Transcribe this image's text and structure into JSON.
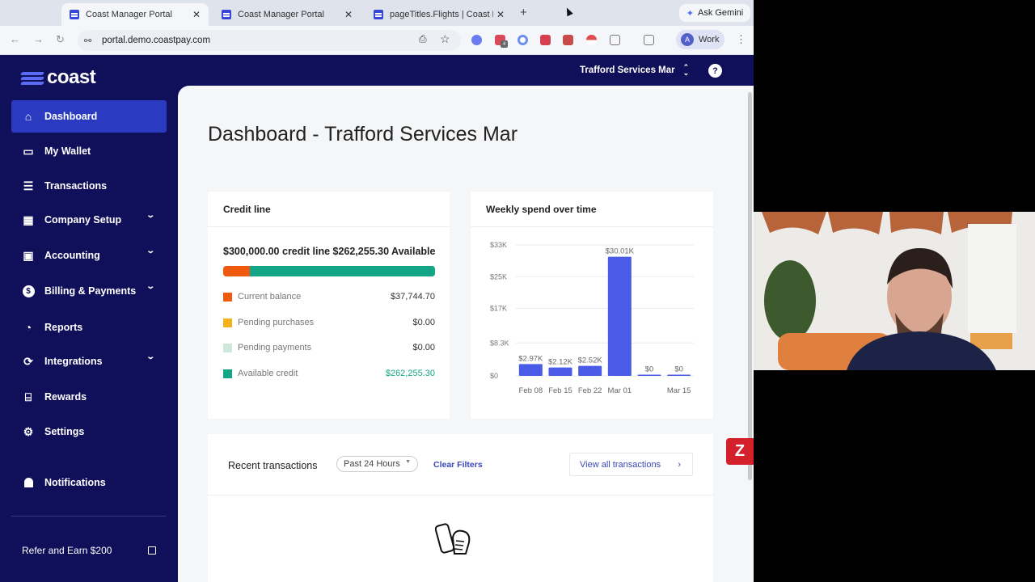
{
  "browser": {
    "tabs": [
      {
        "title": "Coast Manager Portal",
        "active": true
      },
      {
        "title": "Coast Manager Portal",
        "active": false
      },
      {
        "title": "pageTitles.Flights | Coast Rev",
        "active": false
      }
    ],
    "new_tab": "+",
    "ask_gemini": "Ask Gemini",
    "url": "portal.demo.coastpay.com",
    "profile": {
      "initial": "A",
      "label": "Work"
    },
    "extension_badge": "4"
  },
  "sidebar": {
    "logo_text": "coast",
    "items": [
      {
        "label": "Dashboard",
        "icon": "home-icon",
        "active": true,
        "expandable": false
      },
      {
        "label": "My Wallet",
        "icon": "wallet-card-icon",
        "active": false,
        "expandable": false
      },
      {
        "label": "Transactions",
        "icon": "list-icon",
        "active": false,
        "expandable": false
      },
      {
        "label": "Company Setup",
        "icon": "building-icon",
        "active": false,
        "expandable": true
      },
      {
        "label": "Accounting",
        "icon": "calculator-icon",
        "active": false,
        "expandable": true
      },
      {
        "label": "Billing & Payments",
        "icon": "dollar-circle-icon",
        "active": false,
        "expandable": true
      },
      {
        "label": "Reports",
        "icon": "pie-chart-icon",
        "active": false,
        "expandable": false
      },
      {
        "label": "Integrations",
        "icon": "sync-icon",
        "active": false,
        "expandable": true
      },
      {
        "label": "Rewards",
        "icon": "gift-icon",
        "active": false,
        "expandable": false
      },
      {
        "label": "Settings",
        "icon": "gear-icon",
        "active": false,
        "expandable": false
      },
      {
        "label": "Notifications",
        "icon": "bell-icon",
        "active": false,
        "expandable": false
      }
    ],
    "refer": "Refer and Earn $200"
  },
  "header": {
    "org_name": "Trafford Services Mar",
    "help": "?"
  },
  "main": {
    "title": "Dashboard - Trafford Services Mar",
    "credit_line": {
      "title": "Credit line",
      "summary": "$300,000.00 credit line $262,255.30 Available",
      "bar_fractions": {
        "current_balance": 0.1258,
        "pending_purchases": 0,
        "pending_payments": 0,
        "available_credit": 0.8742
      },
      "legend": [
        {
          "label": "Current balance",
          "value": "$37,744.70",
          "color": "#f05a0e"
        },
        {
          "label": "Pending purchases",
          "value": "$0.00",
          "color": "#f2b31a"
        },
        {
          "label": "Pending payments",
          "value": "$0.00",
          "color": "#cfe8dc"
        },
        {
          "label": "Available credit",
          "value": "$262,255.30",
          "color": "#12a686"
        }
      ]
    },
    "recent_transactions": {
      "title": "Recent transactions",
      "filter": "Past 24 Hours",
      "clear_filters": "Clear Filters",
      "view_all": "View all transactions"
    }
  },
  "chart_data": {
    "type": "bar",
    "title": "Weekly spend over time",
    "categories": [
      "Feb 08",
      "Feb 15",
      "Feb 22",
      "Mar 01",
      "",
      "Mar 15"
    ],
    "values": [
      2970,
      2120,
      2520,
      30010,
      0,
      0
    ],
    "data_labels": [
      "$2.97K",
      "$2.12K",
      "$2.52K",
      "$30.01K",
      "$0",
      "$0"
    ],
    "yticks": [
      "$0",
      "$8.3K",
      "$17K",
      "$25K",
      "$33K"
    ],
    "ytick_values": [
      0,
      8300,
      17000,
      25000,
      33000
    ],
    "ylim": [
      0,
      33000
    ],
    "grid": true,
    "color": "#4a5be8"
  },
  "overlay": {
    "badge": "Z"
  }
}
